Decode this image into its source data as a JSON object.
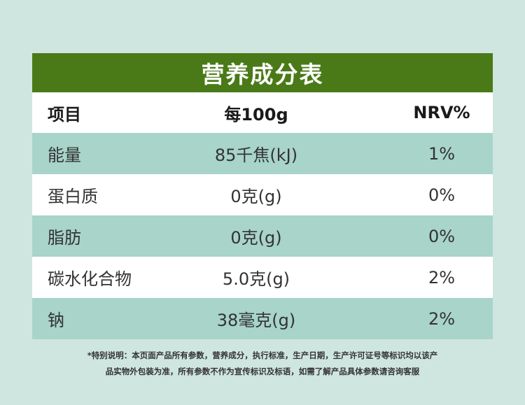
{
  "title": "营养成分表",
  "header": {
    "item": "项目",
    "per100g": "每100g",
    "nrv": "NRV%"
  },
  "rows": [
    {
      "item": "能量",
      "per100g": "85千焦(kJ)",
      "nrv": "1%"
    },
    {
      "item": "蛋白质",
      "per100g": "0克(g)",
      "nrv": "0%"
    },
    {
      "item": "脂肪",
      "per100g": "0克(g)",
      "nrv": "0%"
    },
    {
      "item": "碳水化合物",
      "per100g": "5.0克(g)",
      "nrv": "2%"
    },
    {
      "item": "钠",
      "per100g": "38毫克(g)",
      "nrv": "2%"
    }
  ],
  "footnote": {
    "line1": "*特别说明：本页面产品所有参数，营养成分，执行标准，生产日期，生产许可证号等标识均以该产",
    "line2": "品实物外包装为准，所有参数不作为宣传标识及标语，如需了解产品具体参数请咨询客服"
  },
  "colors": {
    "title_bg": "#4a7a17",
    "alt_row": "#a8d4c9",
    "page_bg": "#cfe6e0"
  }
}
